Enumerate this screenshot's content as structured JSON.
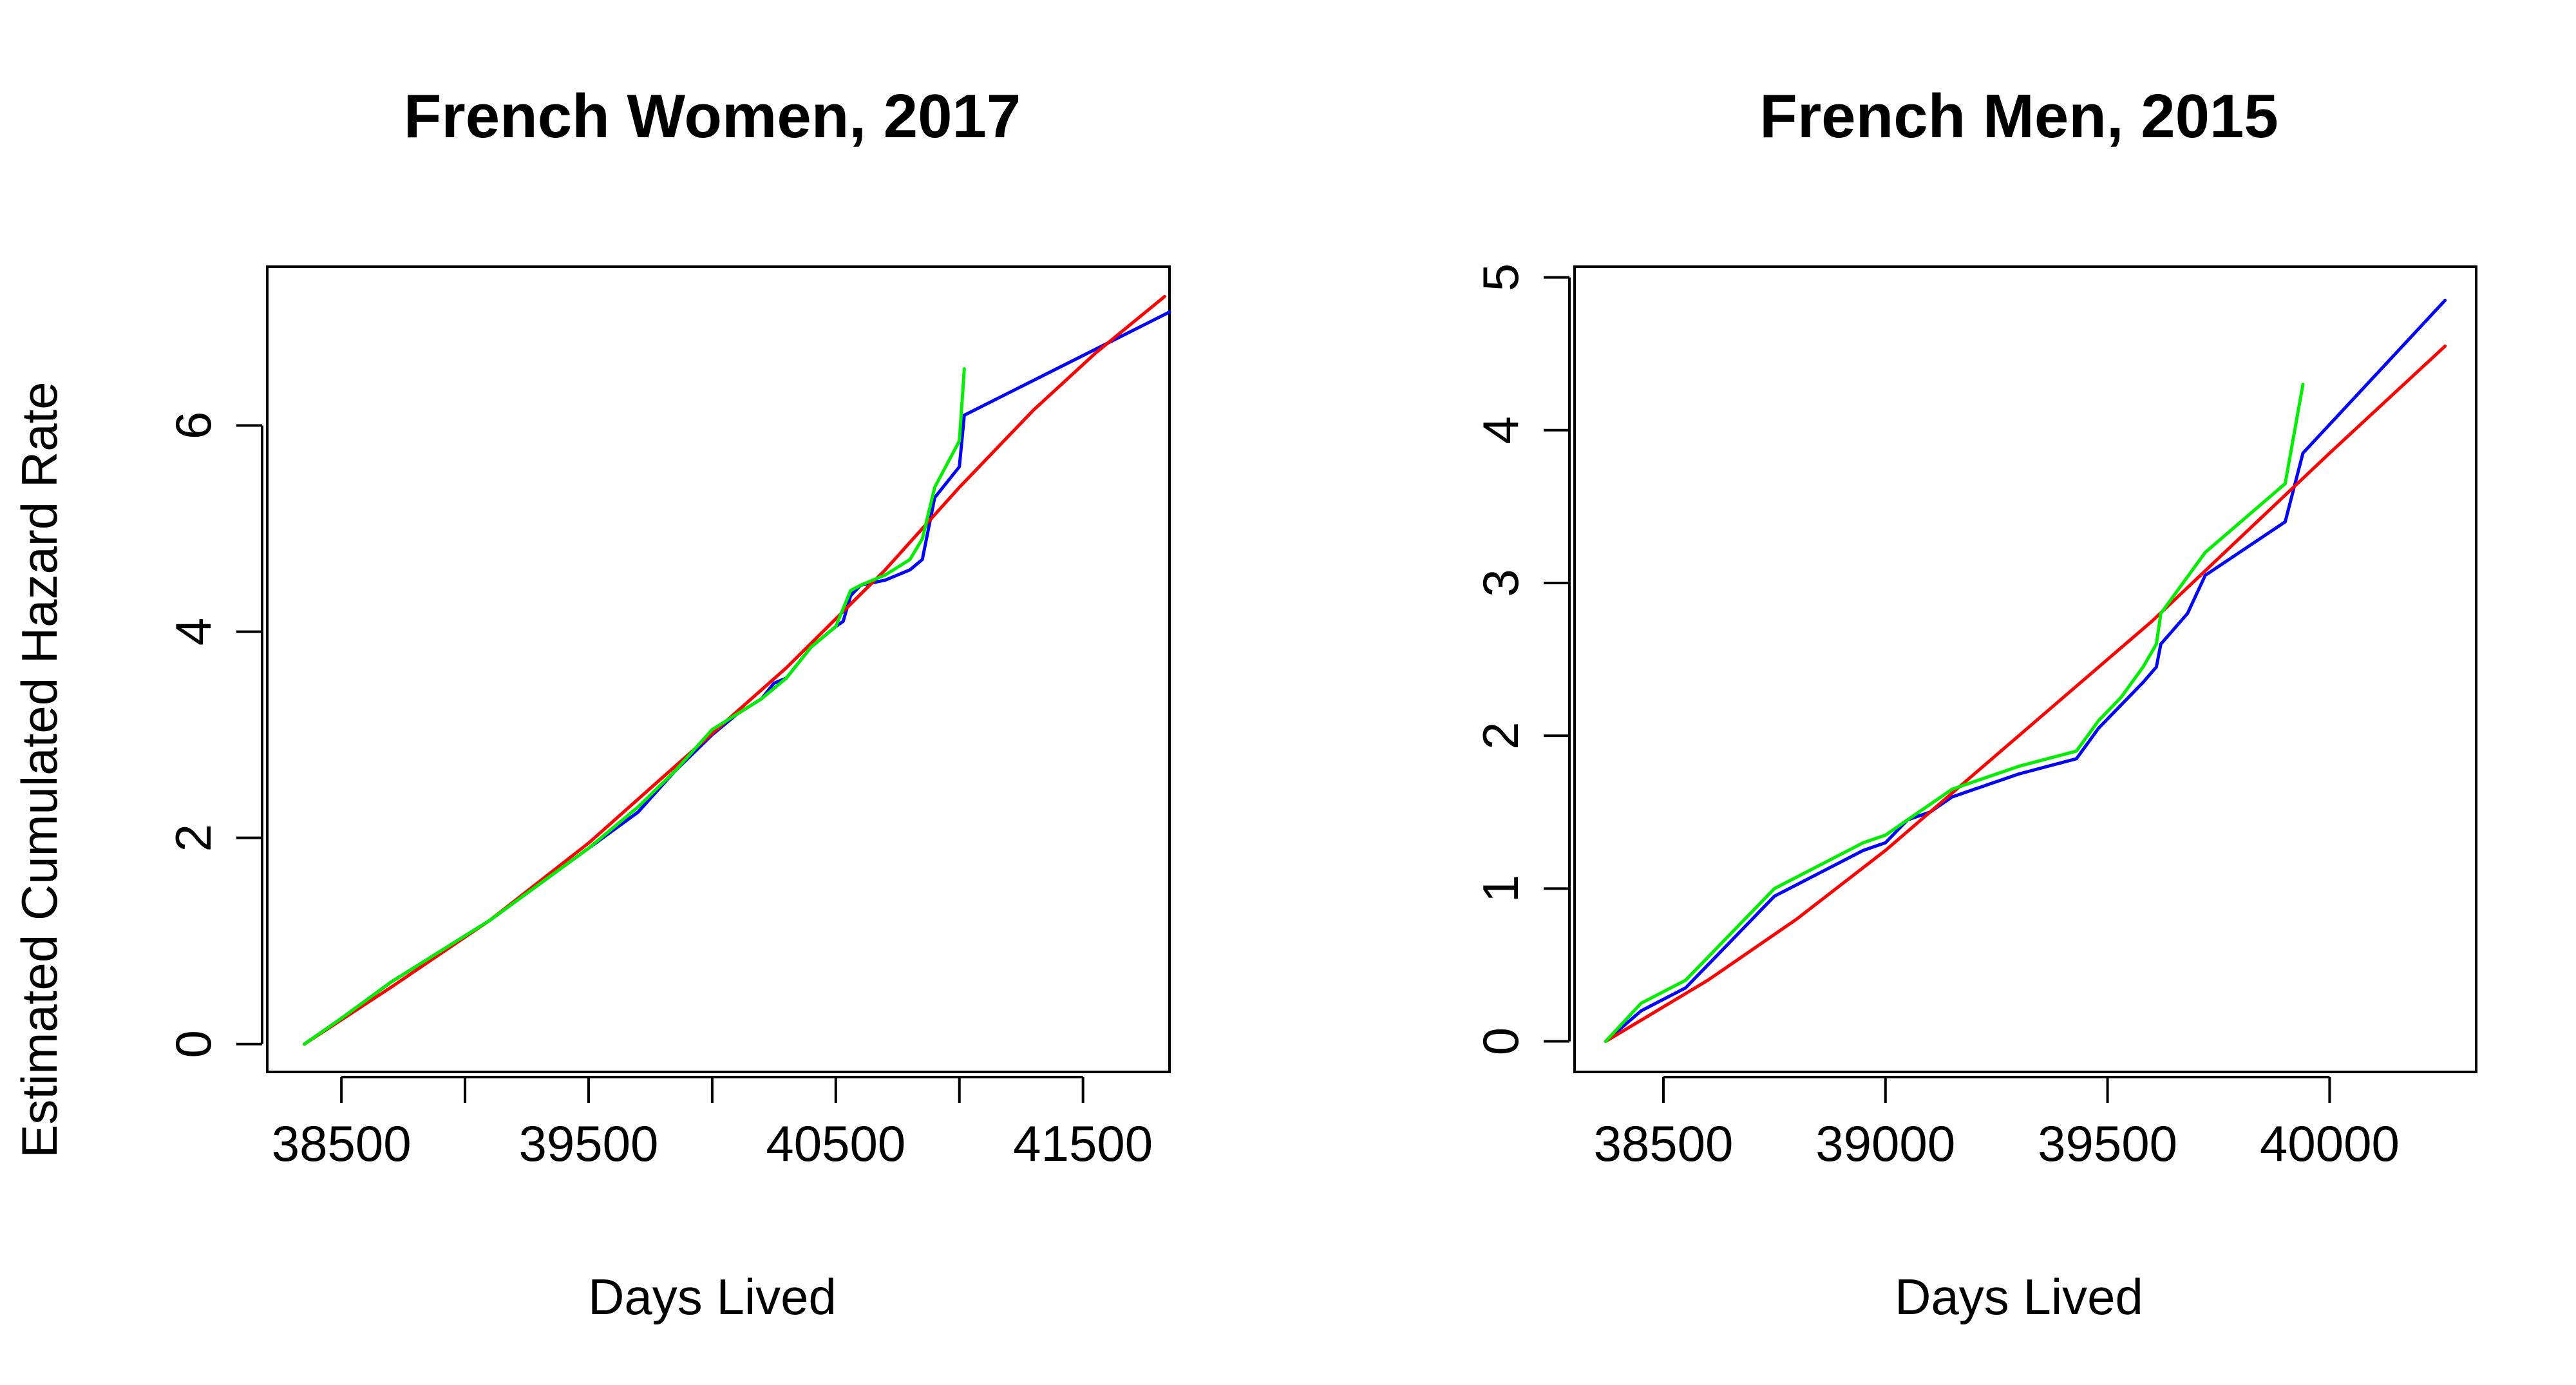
{
  "figure": {
    "shared_ylabel": "Estimated Cumulated Hazard Rate"
  },
  "colors": {
    "blue": "#0000ff",
    "red": "#ff0000",
    "green": "#00ee00",
    "axis": "#000000"
  },
  "chart_data": [
    {
      "type": "line",
      "title": "French Women, 2017",
      "xlabel": "Days Lived",
      "ylabel": "Estimated Cumulated Hazard Rate",
      "xlim": [
        38200,
        41850
      ],
      "ylim": [
        -0.27,
        7.54
      ],
      "xticks": [
        38500,
        39000,
        39500,
        40000,
        40500,
        41000,
        41500
      ],
      "xtick_labels": [
        "38500",
        "",
        "39500",
        "",
        "40500",
        "",
        "41500"
      ],
      "yticks": [
        0,
        2,
        4,
        6
      ],
      "ytick_labels": [
        "0",
        "2",
        "4",
        "6"
      ],
      "grid": false,
      "legend": "none",
      "series": [
        {
          "color": "#0000ff",
          "x": [
            38350,
            38500,
            38700,
            38900,
            39100,
            39300,
            39500,
            39700,
            39850,
            40000,
            40100,
            40200,
            40250,
            40300,
            40350,
            40400,
            40450,
            40500,
            40530,
            40560,
            40600,
            40700,
            40800,
            40850,
            40900,
            41000,
            41020,
            41850
          ],
          "y": [
            0.0,
            0.25,
            0.6,
            0.9,
            1.2,
            1.55,
            1.9,
            2.25,
            2.65,
            3.0,
            3.2,
            3.35,
            3.5,
            3.55,
            3.7,
            3.85,
            3.95,
            4.05,
            4.1,
            4.35,
            4.45,
            4.5,
            4.6,
            4.7,
            5.3,
            5.6,
            6.1,
            7.1
          ]
        },
        {
          "color": "#ff0000",
          "x": [
            38350,
            38700,
            39100,
            39500,
            39900,
            40300,
            40700,
            41000,
            41300,
            41550,
            41830
          ],
          "y": [
            0.0,
            0.55,
            1.2,
            1.95,
            2.8,
            3.65,
            4.6,
            5.4,
            6.15,
            6.7,
            7.25
          ]
        },
        {
          "color": "#00ee00",
          "x": [
            38350,
            38500,
            38700,
            38900,
            39100,
            39300,
            39500,
            39600,
            39700,
            39850,
            40000,
            40100,
            40200,
            40300,
            40400,
            40500,
            40560,
            40600,
            40700,
            40800,
            40850,
            40900,
            41000,
            41020
          ],
          "y": [
            0.0,
            0.25,
            0.6,
            0.9,
            1.2,
            1.55,
            1.9,
            2.1,
            2.3,
            2.65,
            3.05,
            3.2,
            3.35,
            3.55,
            3.85,
            4.05,
            4.4,
            4.45,
            4.55,
            4.7,
            4.9,
            5.4,
            5.85,
            6.55
          ]
        }
      ]
    },
    {
      "type": "line",
      "title": "French Men, 2015",
      "xlabel": "Days Lived",
      "ylabel": "",
      "xlim": [
        38300,
        40330
      ],
      "ylim": [
        -0.2,
        5.07
      ],
      "xticks": [
        38500,
        39000,
        39500,
        40000
      ],
      "xtick_labels": [
        "38500",
        "39000",
        "39500",
        "40000"
      ],
      "yticks": [
        0,
        1,
        2,
        3,
        4,
        5
      ],
      "ytick_labels": [
        "0",
        "1",
        "2",
        "3",
        "4",
        "5"
      ],
      "grid": false,
      "legend": "none",
      "series": [
        {
          "color": "#0000ff",
          "x": [
            38370,
            38450,
            38550,
            38650,
            38750,
            38850,
            38950,
            39000,
            39050,
            39100,
            39150,
            39200,
            39300,
            39430,
            39480,
            39530,
            39580,
            39610,
            39620,
            39680,
            39720,
            39900,
            39940,
            40260
          ],
          "y": [
            0.0,
            0.2,
            0.35,
            0.65,
            0.95,
            1.1,
            1.25,
            1.3,
            1.45,
            1.5,
            1.6,
            1.65,
            1.75,
            1.85,
            2.05,
            2.2,
            2.35,
            2.45,
            2.6,
            2.8,
            3.05,
            3.4,
            3.85,
            4.85
          ]
        },
        {
          "color": "#ff0000",
          "x": [
            38370,
            38600,
            38800,
            39000,
            39200,
            39400,
            39600,
            39800,
            40000,
            40260
          ],
          "y": [
            0.0,
            0.4,
            0.8,
            1.25,
            1.75,
            2.25,
            2.75,
            3.3,
            3.85,
            4.55
          ]
        },
        {
          "color": "#00ee00",
          "x": [
            38370,
            38450,
            38550,
            38650,
            38750,
            38850,
            38950,
            39000,
            39050,
            39100,
            39150,
            39200,
            39300,
            39430,
            39480,
            39530,
            39580,
            39610,
            39620,
            39720,
            39900,
            39940
          ],
          "y": [
            0.0,
            0.25,
            0.4,
            0.7,
            1.0,
            1.15,
            1.3,
            1.35,
            1.45,
            1.55,
            1.65,
            1.7,
            1.8,
            1.9,
            2.1,
            2.25,
            2.45,
            2.6,
            2.8,
            3.2,
            3.65,
            4.3
          ]
        }
      ]
    }
  ]
}
